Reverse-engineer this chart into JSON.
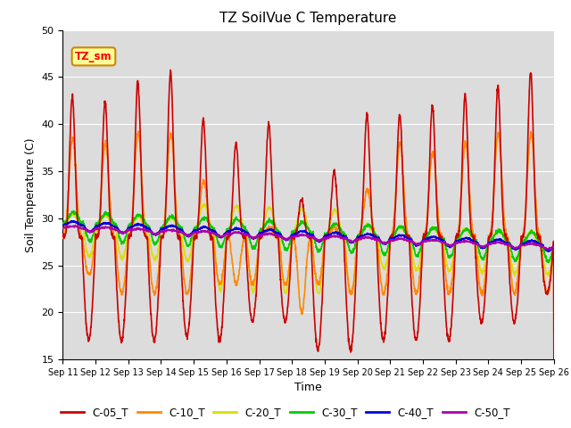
{
  "title": "TZ SoilVue C Temperature",
  "xlabel": "Time",
  "ylabel": "Soil Temperature (C)",
  "ylim": [
    15,
    50
  ],
  "n_days": 15,
  "xtick_labels": [
    "Sep 11",
    "Sep 12",
    "Sep 13",
    "Sep 14",
    "Sep 15",
    "Sep 16",
    "Sep 17",
    "Sep 18",
    "Sep 19",
    "Sep 20",
    "Sep 21",
    "Sep 22",
    "Sep 23",
    "Sep 24",
    "Sep 25",
    "Sep 26"
  ],
  "legend_label": "TZ_sm",
  "legend_box_color": "#ffff99",
  "legend_box_edge": "#cc8800",
  "ax_background": "#dcdcdc",
  "series_colors": {
    "C-05_T": "#cc0000",
    "C-10_T": "#ff8800",
    "C-20_T": "#dddd00",
    "C-30_T": "#00cc00",
    "C-40_T": "#0000dd",
    "C-50_T": "#aa00aa"
  },
  "lw": 1.2,
  "yticks": [
    15,
    20,
    25,
    30,
    35,
    40,
    45,
    50
  ]
}
